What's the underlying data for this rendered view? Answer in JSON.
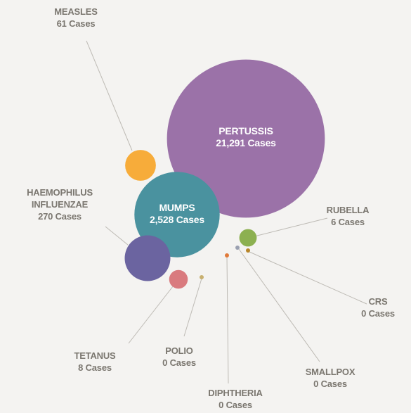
{
  "chart_data": {
    "type": "bubble",
    "categories": [
      "PERTUSSIS",
      "MUMPS",
      "HAEMOPHILUS INFLUENZAE",
      "MEASLES",
      "TETANUS",
      "POLIO",
      "DIPHTHERIA",
      "SMALLPOX",
      "CRS",
      "RUBELLA"
    ],
    "values": [
      21291,
      2528,
      270,
      61,
      8,
      0,
      0,
      0,
      0,
      6
    ],
    "value_labels": [
      "21,291 Cases",
      "2,528 Cases",
      "270 Cases",
      "61 Cases",
      "8 Cases",
      "0 Cases",
      "0 Cases",
      "0 Cases",
      "0 Cases",
      "6 Cases"
    ],
    "colors": [
      "#9b72a8",
      "#4a929f",
      "#6b64a0",
      "#f7ac3a",
      "#d97a7e",
      "#c8b070",
      "#e07a3a",
      "#9aa0b0",
      "#b8862a",
      "#8cb050"
    ]
  }
}
